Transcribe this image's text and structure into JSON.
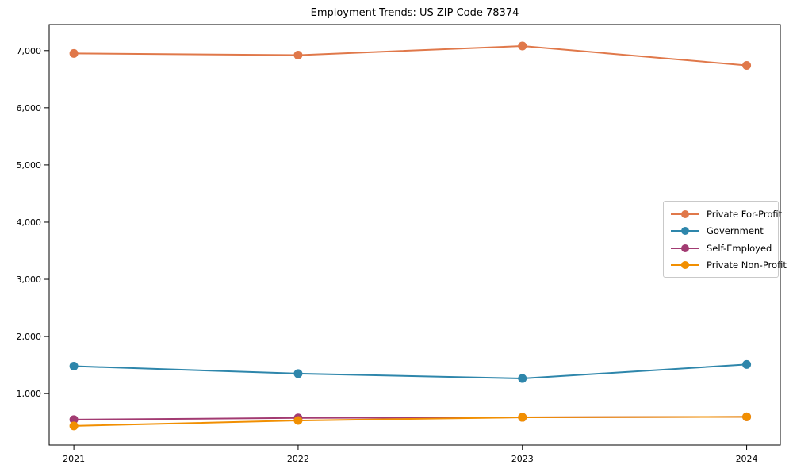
{
  "chart_data": {
    "type": "line",
    "title": "Employment Trends: US ZIP Code 78374",
    "xlabel": "",
    "ylabel": "",
    "grid": false,
    "legend_position": "center right",
    "x": [
      2021,
      2022,
      2023,
      2024
    ],
    "x_tick_labels": [
      "2021",
      "2022",
      "2023",
      "2024"
    ],
    "y_ticks": [
      1000,
      2000,
      3000,
      4000,
      5000,
      6000,
      7000
    ],
    "y_tick_labels": [
      "1,000",
      "2,000",
      "3,000",
      "4,000",
      "5,000",
      "6,000",
      "7,000"
    ],
    "xlim": [
      2020.89,
      2024.15
    ],
    "ylim": [
      100,
      7455
    ],
    "series": [
      {
        "name": "Private For-Profit",
        "color": "#E0784A",
        "values": [
          6950,
          6920,
          7080,
          6740
        ]
      },
      {
        "name": "Government",
        "color": "#2E86AB",
        "values": [
          1480,
          1350,
          1265,
          1510
        ]
      },
      {
        "name": "Self-Employed",
        "color": "#A23B72",
        "values": [
          545,
          575,
          585,
          595
        ]
      },
      {
        "name": "Private Non-Profit",
        "color": "#F18F01",
        "values": [
          435,
          530,
          585,
          595
        ]
      }
    ]
  }
}
